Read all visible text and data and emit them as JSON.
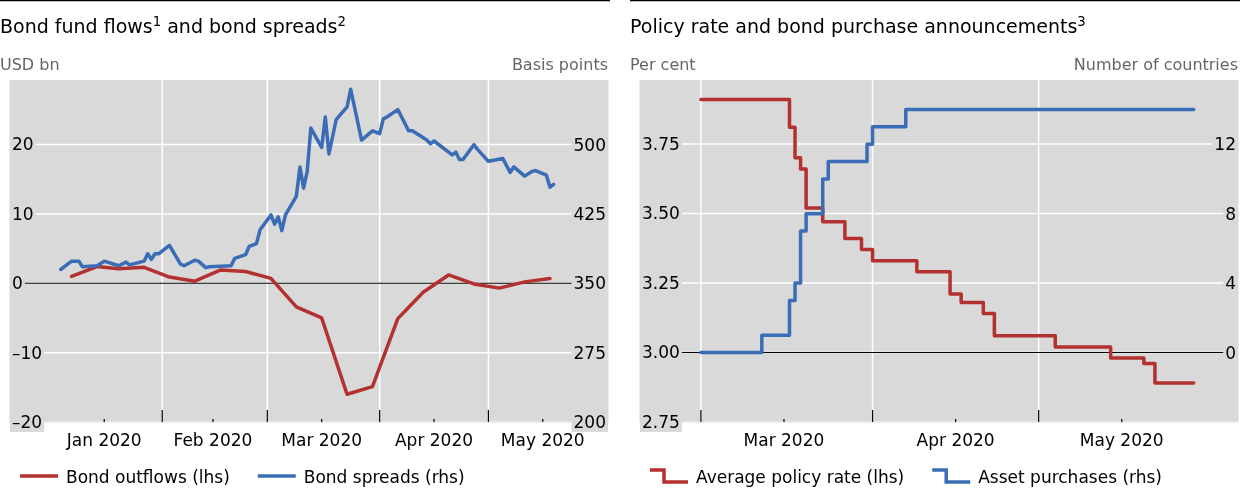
{
  "chart_data": [
    {
      "type": "line",
      "title": "Bond fund flows$^{1}$ and bond spreads$^{2}$",
      "ylabel": "USD bn",
      "y2label": "Basis points",
      "xlim": [
        "2019-12-21",
        "2020-06-03"
      ],
      "xticks": [
        {
          "value": "2020-01-16",
          "label": "Jan 2020"
        },
        {
          "value": "2020-02-01",
          "label": null
        },
        {
          "value": "2020-02-15",
          "label": "Feb 2020"
        },
        {
          "value": "2020-03-01",
          "label": null
        },
        {
          "value": "2020-03-16",
          "label": "Mar 2020"
        },
        {
          "value": "2020-04-01",
          "label": null
        },
        {
          "value": "2020-04-16",
          "label": "Apr 2020"
        },
        {
          "value": "2020-05-01",
          "label": null
        },
        {
          "value": "2020-05-16",
          "label": "May 2020"
        }
      ],
      "ylim": [
        -20,
        29.3
      ],
      "yticks": [
        {
          "value": -20,
          "label": "–20"
        },
        {
          "value": -10,
          "label": "–10"
        },
        0,
        10,
        20
      ],
      "y2lim": [
        200,
        570
      ],
      "y2ticks": [
        200,
        275,
        350,
        425,
        500
      ],
      "grid": true,
      "legend": "bottom",
      "ref_lines": [
        {
          "axis": "y",
          "value": 0,
          "color": "#000000"
        }
      ],
      "series": [
        {
          "name": "Bond outflows (lhs)",
          "color": "#b3312f",
          "x": [
            "2020-01-07",
            "2020-01-14",
            "2020-01-20",
            "2020-01-27",
            "2020-02-03",
            "2020-02-10",
            "2020-02-17",
            "2020-02-24",
            "2020-03-02",
            "2020-03-09",
            "2020-03-16",
            "2020-03-23",
            "2020-03-30",
            "2020-04-06",
            "2020-04-13",
            "2020-04-20",
            "2020-04-27",
            "2020-05-04",
            "2020-05-11",
            "2020-05-18"
          ],
          "values": [
            1.0,
            2.4,
            2.1,
            2.3,
            0.9,
            0.3,
            1.9,
            1.7,
            0.7,
            -3.4,
            -5.0,
            -16.0,
            -14.9,
            -5.1,
            -1.3,
            1.2,
            -0.1,
            -0.7,
            0.2,
            0.7
          ]
        },
        {
          "name": "Bond spreads (rhs)",
          "color": "#3a6db5",
          "axis": "y2",
          "x": [
            "2020-01-04",
            "2020-01-07",
            "2020-01-09",
            "2020-01-10",
            "2020-01-14",
            "2020-01-16",
            "2020-01-20",
            "2020-01-22",
            "2020-01-23",
            "2020-01-27",
            "2020-01-28",
            "2020-01-29",
            "2020-01-30",
            "2020-01-31",
            "2020-02-03",
            "2020-02-06",
            "2020-02-07",
            "2020-02-10",
            "2020-02-11",
            "2020-02-13",
            "2020-02-14",
            "2020-02-20",
            "2020-02-21",
            "2020-02-24",
            "2020-02-25",
            "2020-02-27",
            "2020-02-28",
            "2020-03-02",
            "2020-03-03",
            "2020-03-04",
            "2020-03-05",
            "2020-03-06",
            "2020-03-09",
            "2020-03-10",
            "2020-03-11",
            "2020-03-12",
            "2020-03-13",
            "2020-03-16",
            "2020-03-17",
            "2020-03-18",
            "2020-03-20",
            "2020-03-23",
            "2020-03-24",
            "2020-03-27",
            "2020-03-30",
            "2020-04-01",
            "2020-04-02",
            "2020-04-03",
            "2020-04-06",
            "2020-04-09",
            "2020-04-10",
            "2020-04-14",
            "2020-04-15",
            "2020-04-16",
            "2020-04-21",
            "2020-04-22",
            "2020-04-23",
            "2020-04-24",
            "2020-04-27",
            "2020-04-28",
            "2020-05-01",
            "2020-05-05",
            "2020-05-07",
            "2020-05-08",
            "2020-05-11",
            "2020-05-13",
            "2020-05-14",
            "2020-05-17",
            "2020-05-18",
            "2020-05-19"
          ],
          "values": [
            365,
            374,
            374,
            368,
            369,
            374,
            369,
            373,
            370,
            374,
            382,
            376,
            382,
            382,
            391,
            371,
            369,
            375,
            374,
            367,
            368,
            369,
            377,
            381,
            390,
            393,
            408,
            424,
            414,
            422,
            407,
            424,
            444,
            476,
            453,
            471,
            518,
            497,
            530,
            490,
            527,
            541,
            560,
            505,
            515,
            512,
            528,
            530,
            538,
            515,
            515,
            505,
            501,
            504,
            489,
            492,
            484,
            484,
            500,
            495,
            482,
            485,
            470,
            476,
            466,
            471,
            472,
            467,
            454,
            457
          ]
        }
      ]
    },
    {
      "type": "step",
      "title": "Policy rate and bond purchase announcements$^{3}$",
      "ylabel": "Per cent",
      "y2label": "Number of countries",
      "xlim": [
        "2020-02-19",
        "2020-06-06"
      ],
      "xticks": [
        {
          "value": "2020-03-01",
          "label": null
        },
        {
          "value": "2020-03-16",
          "label": "Mar 2020"
        },
        {
          "value": "2020-04-01",
          "label": null
        },
        {
          "value": "2020-04-16",
          "label": "Apr 2020"
        },
        {
          "value": "2020-05-01",
          "label": null
        },
        {
          "value": "2020-05-16",
          "label": "May 2020"
        }
      ],
      "ylim": [
        2.75,
        3.98
      ],
      "yticks": [
        {
          "value": 2.75,
          "label": "2.75"
        },
        {
          "value": 3,
          "label": "3.00"
        },
        {
          "value": 3.25,
          "label": "3.25"
        },
        {
          "value": 3.5,
          "label": "3.50"
        },
        {
          "value": 3.75,
          "label": "3.75"
        }
      ],
      "y2lim": [
        -4,
        15.7
      ],
      "y2ticks": [
        0,
        4,
        8,
        12
      ],
      "grid": true,
      "legend": "bottom",
      "ref_lines": [
        {
          "axis": "y",
          "value": 3,
          "color": "#000000"
        }
      ],
      "series": [
        {
          "name": "Average policy rate (lhs)",
          "color": "#b3312f",
          "x": [
            "2020-03-01",
            "2020-03-17",
            "2020-03-18",
            "2020-03-19",
            "2020-03-20",
            "2020-03-23",
            "2020-03-27",
            "2020-03-30",
            "2020-04-01",
            "2020-04-09",
            "2020-04-15",
            "2020-04-17",
            "2020-04-21",
            "2020-04-23",
            "2020-05-04",
            "2020-05-14",
            "2020-05-20",
            "2020-05-22",
            "2020-05-29"
          ],
          "values": [
            3.91,
            3.81,
            3.7,
            3.66,
            3.52,
            3.47,
            3.41,
            3.37,
            3.33,
            3.29,
            3.21,
            3.18,
            3.14,
            3.06,
            3.02,
            2.98,
            2.96,
            2.89,
            2.89
          ]
        },
        {
          "name": "Asset purchases (rhs)",
          "color": "#3a6db5",
          "axis": "y2",
          "x": [
            "2020-03-01",
            "2020-03-12",
            "2020-03-17",
            "2020-03-18",
            "2020-03-19",
            "2020-03-20",
            "2020-03-23",
            "2020-03-24",
            "2020-03-31",
            "2020-04-01",
            "2020-04-07",
            "2020-05-29"
          ],
          "values": [
            0,
            1,
            3,
            4,
            7,
            8,
            10,
            11,
            12,
            13,
            14,
            14
          ]
        }
      ]
    }
  ]
}
